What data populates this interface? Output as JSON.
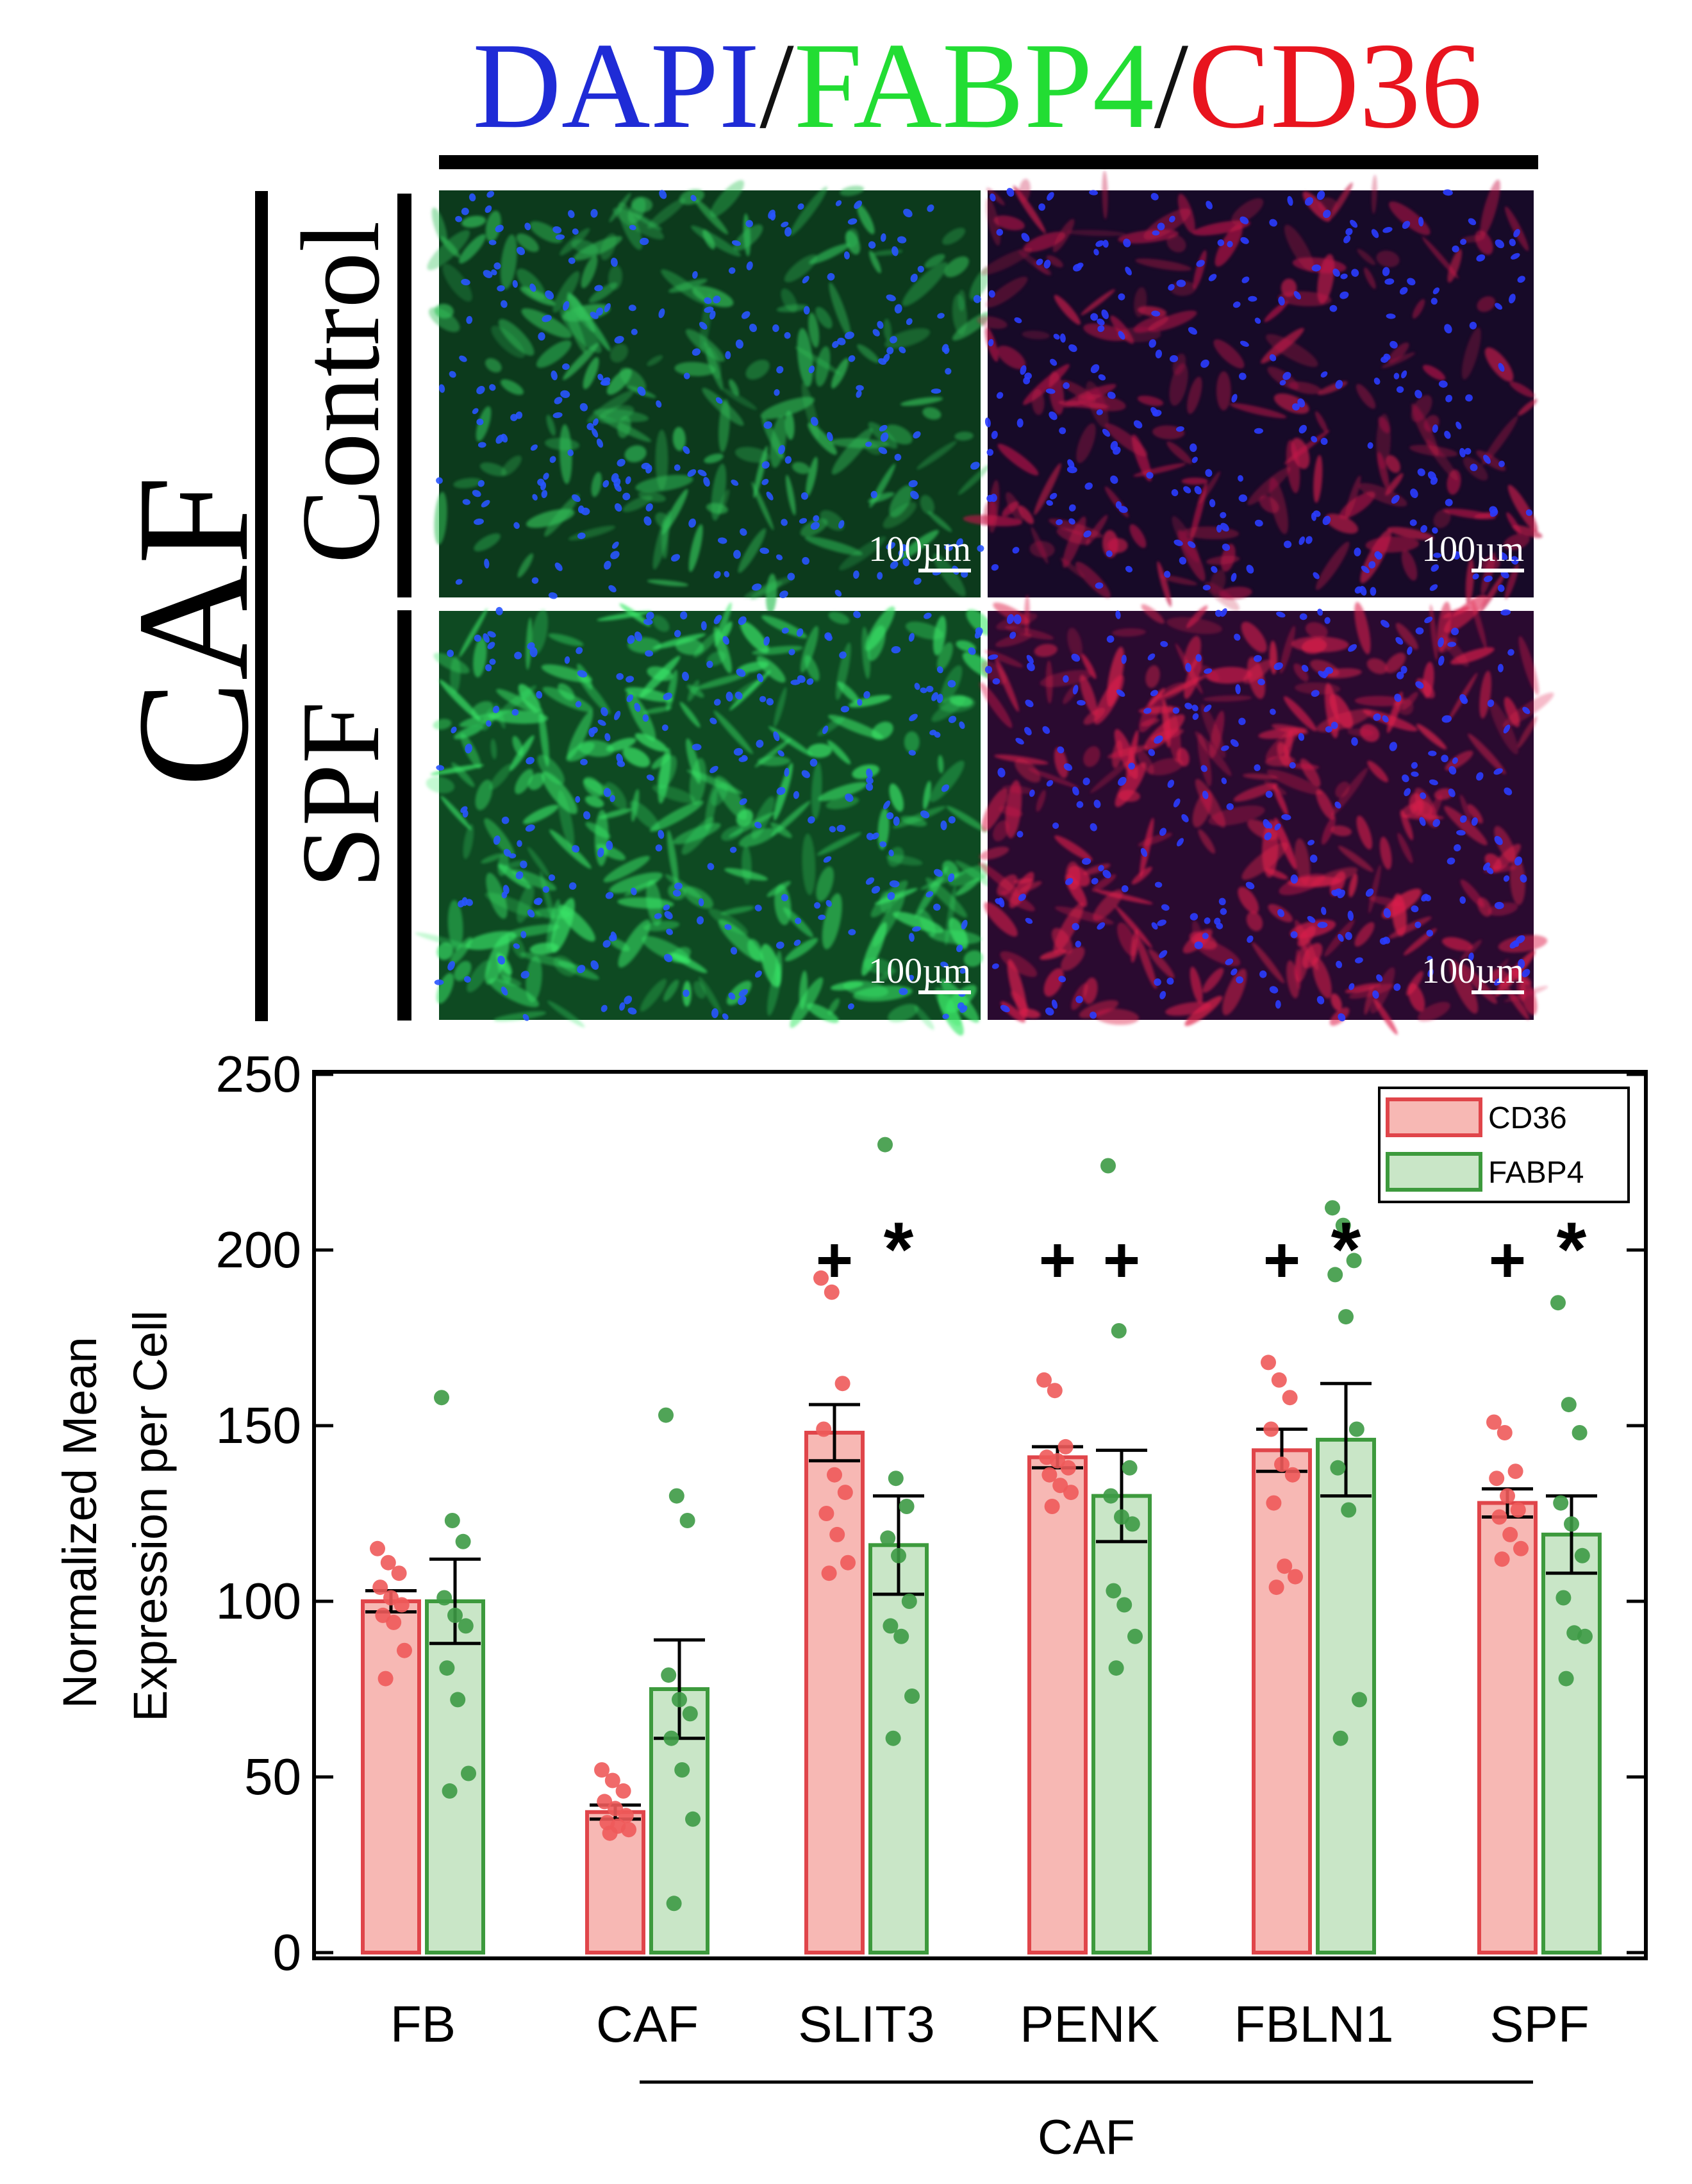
{
  "figure": {
    "stain_title": {
      "dapi": "DAPI",
      "sep1": "/",
      "fabp4": "FABP4",
      "sep2": "/",
      "cd36": "CD36",
      "colors": {
        "dapi": "#1f2bd6",
        "fabp4": "#22dd33",
        "cd36": "#e8141e"
      }
    },
    "group_label": "CAF",
    "row_labels": [
      "Control",
      "SPF"
    ],
    "scale_bar_text": "100µm",
    "panels": [
      {
        "row": "Control",
        "stain": "DAPI/FABP4",
        "base_color": "#0c3a1c",
        "cell_color": "#33c25a",
        "nuclei_color": "#2855ff",
        "scale_bar": "100µm"
      },
      {
        "row": "Control",
        "stain": "DAPI/CD36",
        "base_color": "#170a28",
        "cell_color": "#c8194a",
        "nuclei_color": "#2a3cff",
        "scale_bar": "100µm"
      },
      {
        "row": "SPF",
        "stain": "DAPI/FABP4",
        "base_color": "#0e4a22",
        "cell_color": "#3bea6a",
        "nuclei_color": "#2855ff",
        "scale_bar": "100µm"
      },
      {
        "row": "SPF",
        "stain": "DAPI/CD36",
        "base_color": "#2a0a30",
        "cell_color": "#e0204c",
        "nuclei_color": "#2a3cff",
        "scale_bar": "100µm"
      }
    ]
  },
  "chart_data": {
    "type": "bar",
    "ylabel": "Normalized Mean Expression per Cell",
    "ylabel_lines": [
      "Normalized Mean",
      "Expression per Cell"
    ],
    "ylim": [
      0,
      250
    ],
    "yticks": [
      0,
      50,
      100,
      150,
      200,
      250
    ],
    "categories": [
      "FB",
      "CAF",
      "SLIT3",
      "PENK",
      "FBLN1",
      "SPF"
    ],
    "group_bracket": {
      "label": "CAF",
      "from": "CAF",
      "to": "SPF"
    },
    "legend": {
      "position": "top-right",
      "entries": [
        "CD36",
        "FABP4"
      ]
    },
    "series": [
      {
        "name": "CD36",
        "fill": "#f7b8b4",
        "edge": "#e0454a",
        "dot": "#ee5a5a",
        "values": [
          100,
          40,
          148,
          141,
          143,
          128
        ],
        "sem": [
          3,
          2,
          8,
          3,
          6,
          4
        ],
        "points": [
          [
            115,
            111,
            108,
            104,
            101,
            99,
            96,
            94,
            86,
            78
          ],
          [
            52,
            49,
            46,
            43,
            41,
            39,
            37,
            36,
            35,
            34
          ],
          [
            192,
            188,
            162,
            149,
            136,
            131,
            125,
            119,
            111,
            108
          ],
          [
            163,
            160,
            144,
            141,
            140,
            138,
            136,
            133,
            131,
            127
          ],
          [
            168,
            163,
            158,
            149,
            139,
            136,
            128,
            110,
            107,
            104
          ],
          [
            151,
            148,
            137,
            135,
            130,
            126,
            124,
            119,
            115,
            112
          ]
        ],
        "significance": [
          "",
          "",
          "+",
          "+",
          "+",
          "+"
        ]
      },
      {
        "name": "FABP4",
        "fill": "#c9e6c7",
        "edge": "#3d9a3d",
        "dot": "#3d9a45",
        "values": [
          100,
          75,
          116,
          130,
          146,
          119
        ],
        "sem": [
          12,
          14,
          14,
          13,
          16,
          11
        ],
        "points": [
          [
            158,
            123,
            117,
            101,
            96,
            93,
            81,
            72,
            51,
            46
          ],
          [
            153,
            130,
            123,
            79,
            72,
            68,
            61,
            52,
            38,
            14
          ],
          [
            230,
            135,
            127,
            118,
            113,
            100,
            93,
            90,
            73,
            61
          ],
          [
            224,
            177,
            138,
            130,
            124,
            122,
            103,
            99,
            90,
            81
          ],
          [
            212,
            207,
            197,
            193,
            181,
            149,
            138,
            126,
            72,
            61
          ],
          [
            185,
            156,
            148,
            128,
            122,
            113,
            101,
            91,
            90,
            78
          ]
        ],
        "significance": [
          "",
          "",
          "*",
          "+",
          "*",
          "*"
        ]
      }
    ]
  }
}
